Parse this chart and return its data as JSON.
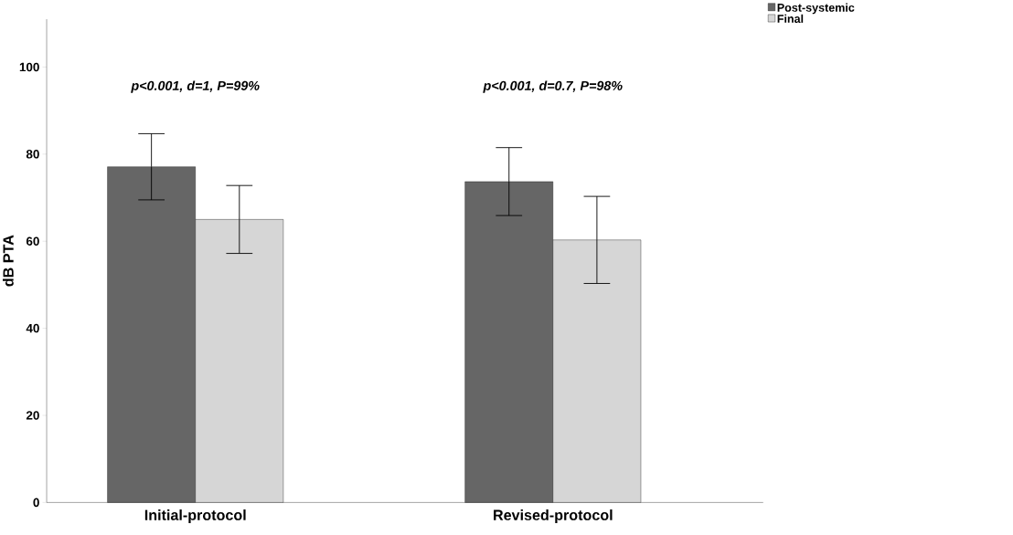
{
  "chart_data": {
    "type": "bar",
    "ylabel": "dB PTA",
    "categories": [
      "Initial-protocol",
      "Revised-protocol"
    ],
    "series": [
      {
        "name": "Post-systemic",
        "color": "#666666",
        "values": [
          77.1,
          73.7
        ],
        "errors": [
          7.6,
          7.8
        ]
      },
      {
        "name": "Final",
        "color": "#d6d6d6",
        "values": [
          65,
          60.3
        ],
        "errors": [
          7.8,
          10
        ]
      }
    ],
    "ylim": [
      0,
      111
    ],
    "yticks": [
      0,
      20,
      40,
      60,
      80,
      100
    ],
    "annotations": [
      "p<0.001, d=1, P=99%",
      "p<0.001, d=0.7, P=98%"
    ],
    "legend": "top right",
    "grid": false
  }
}
